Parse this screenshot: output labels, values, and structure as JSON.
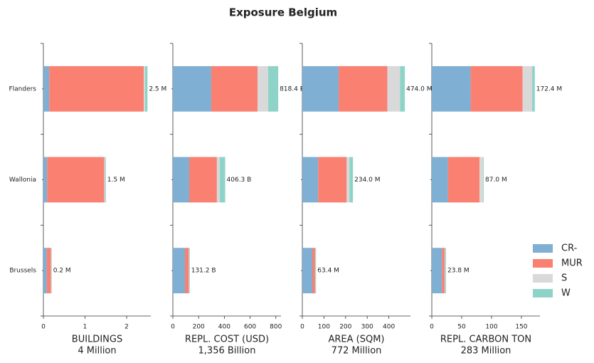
{
  "title": "Exposure Belgium",
  "categories": [
    "Flanders",
    "Wallonia",
    "Brussels"
  ],
  "legend": {
    "position": "right",
    "items": [
      {
        "name": "CR-",
        "color": "#7fafd2"
      },
      {
        "name": "MUR",
        "color": "#fa8072"
      },
      {
        "name": "S",
        "color": "#d9d9d9"
      },
      {
        "name": "W",
        "color": "#8dd3c7"
      }
    ]
  },
  "chart_data": [
    {
      "type": "bar",
      "orientation": "horizontal",
      "stacked": true,
      "xlabel": "BUILDINGS",
      "xlabel_sub": "4 Million",
      "xlim": [
        0,
        2.58
      ],
      "xticks": [
        0,
        1,
        2
      ],
      "series": [
        {
          "values": [
            0.14,
            0.09,
            0.08
          ]
        },
        {
          "values": [
            2.27,
            1.37,
            0.1
          ]
        },
        {
          "values": [
            0.03,
            0.02,
            0.01
          ]
        },
        {
          "values": [
            0.06,
            0.02,
            0.01
          ]
        }
      ],
      "totals": {
        "values": [
          2.5,
          1.5,
          0.2
        ],
        "value_labels": [
          "2.5 M",
          "1.5 M",
          "0.2 M"
        ]
      }
    },
    {
      "type": "bar",
      "orientation": "horizontal",
      "stacked": true,
      "xlabel": "REPL. COST (USD)",
      "xlabel_sub": "1,356 Billion",
      "xlim": [
        0,
        840
      ],
      "xticks": [
        0,
        200,
        400,
        600,
        800
      ],
      "series": [
        {
          "values": [
            298,
            127,
            94
          ]
        },
        {
          "values": [
            360,
            215,
            30
          ]
        },
        {
          "values": [
            82,
            23,
            3
          ]
        },
        {
          "values": [
            78.4,
            41.3,
            4.2
          ]
        }
      ],
      "totals": {
        "values": [
          818.4,
          406.3,
          131.2
        ],
        "value_labels": [
          "818.4 B",
          "406.3 B",
          "131.2 B"
        ]
      }
    },
    {
      "type": "bar",
      "orientation": "horizontal",
      "stacked": true,
      "xlabel": "AREA (SQM)",
      "xlabel_sub": "772 Million",
      "xlim": [
        0,
        500
      ],
      "xticks": [
        0,
        100,
        200,
        300,
        400
      ],
      "series": [
        {
          "values": [
            168,
            73,
            46
          ]
        },
        {
          "values": [
            225,
            132,
            13
          ]
        },
        {
          "values": [
            59,
            13,
            1.4
          ]
        },
        {
          "values": [
            22,
            16,
            3
          ]
        }
      ],
      "totals": {
        "values": [
          474.0,
          234.0,
          63.4
        ],
        "value_labels": [
          "474.0 M",
          "234.0 M",
          "63.4 M"
        ]
      }
    },
    {
      "type": "bar",
      "orientation": "horizontal",
      "stacked": true,
      "xlabel": "REPL. CARBON TON",
      "xlabel_sub": "283 Million",
      "xlim": [
        0,
        181
      ],
      "xticks": [
        0,
        50,
        100,
        150
      ],
      "series": [
        {
          "values": [
            65,
            27,
            17
          ]
        },
        {
          "values": [
            87,
            53,
            4.5
          ]
        },
        {
          "values": [
            16,
            6,
            1
          ]
        },
        {
          "values": [
            4.4,
            1,
            1.3
          ]
        }
      ],
      "totals": {
        "values": [
          172.4,
          87.0,
          23.8
        ],
        "value_labels": [
          "172.4 M",
          "87.0 M",
          "23.8 M"
        ]
      }
    }
  ]
}
